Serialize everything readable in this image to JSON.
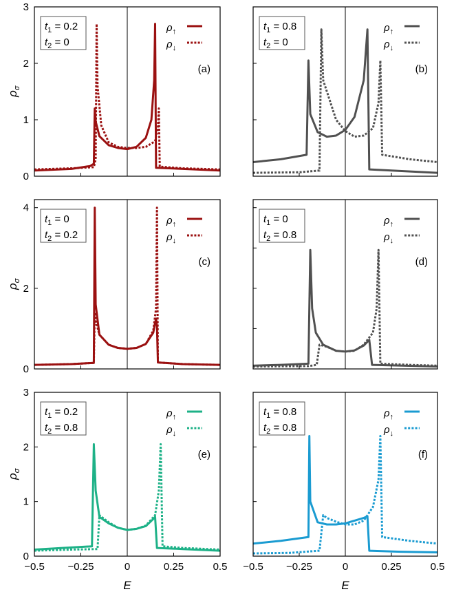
{
  "chart_data": [
    {
      "id": "a",
      "type": "line",
      "panel_label": "(a)",
      "xlim": [
        -0.5,
        0.5
      ],
      "ylim": [
        0,
        3
      ],
      "ylabel": "ρσ",
      "xlabel": "",
      "yticks": [
        0,
        1,
        2,
        3
      ],
      "ytick_labels": [
        "0",
        "1",
        "2",
        "3"
      ],
      "xticks": [
        -0.5,
        -0.25,
        0,
        0.25,
        0.5
      ],
      "xtick_labels": [],
      "params": [
        "t1 = 0.2",
        "t2 = 0"
      ],
      "color": "#9b1111",
      "legend": [
        "ρ↑",
        "ρ↓"
      ],
      "series": [
        {
          "style": "solid",
          "x": [
            -0.5,
            -0.3,
            -0.2,
            -0.18,
            -0.175,
            -0.17,
            -0.15,
            -0.1,
            -0.05,
            0,
            0.05,
            0.1,
            0.13,
            0.145,
            0.15,
            0.155,
            0.3,
            0.5
          ],
          "y": [
            0.1,
            0.13,
            0.18,
            0.22,
            1.2,
            0.97,
            0.71,
            0.55,
            0.5,
            0.48,
            0.52,
            0.68,
            1.0,
            1.7,
            2.7,
            0.15,
            0.13,
            0.1
          ]
        },
        {
          "style": "dotted",
          "x": [
            -0.5,
            -0.3,
            -0.18,
            -0.17,
            -0.165,
            -0.16,
            -0.14,
            -0.1,
            -0.05,
            0,
            0.05,
            0.1,
            0.15,
            0.165,
            0.17,
            0.175,
            0.3,
            0.5
          ],
          "y": [
            0.12,
            0.14,
            0.16,
            0.3,
            2.7,
            1.6,
            0.9,
            0.6,
            0.52,
            0.5,
            0.5,
            0.52,
            0.62,
            0.85,
            1.2,
            0.17,
            0.14,
            0.12
          ]
        }
      ]
    },
    {
      "id": "b",
      "type": "line",
      "panel_label": "(b)",
      "xlim": [
        -0.5,
        0.5
      ],
      "ylim": [
        0,
        3
      ],
      "ylabel": "",
      "xlabel": "",
      "yticks": [
        0,
        1,
        2,
        3
      ],
      "ytick_labels": [],
      "xticks": [
        -0.5,
        -0.25,
        0,
        0.25,
        0.5
      ],
      "xtick_labels": [],
      "params": [
        "t1 = 0.8",
        "t2 = 0"
      ],
      "color": "#505050",
      "legend": [
        "ρ↑",
        "ρ↓"
      ],
      "series": [
        {
          "style": "solid",
          "x": [
            -0.5,
            -0.35,
            -0.21,
            -0.2,
            -0.19,
            -0.15,
            -0.1,
            -0.05,
            0,
            0.05,
            0.1,
            0.12,
            0.13,
            0.5
          ],
          "y": [
            0.25,
            0.3,
            0.38,
            2.05,
            1.1,
            0.78,
            0.7,
            0.72,
            0.82,
            1.05,
            1.7,
            2.6,
            0.12,
            0.06
          ]
        },
        {
          "style": "dotted",
          "x": [
            -0.5,
            -0.25,
            -0.14,
            -0.13,
            -0.12,
            -0.05,
            0,
            0.05,
            0.1,
            0.15,
            0.18,
            0.19,
            0.2,
            0.35,
            0.5
          ],
          "y": [
            0.06,
            0.07,
            0.1,
            2.6,
            1.7,
            1.0,
            0.8,
            0.7,
            0.72,
            0.85,
            1.3,
            2.05,
            0.38,
            0.3,
            0.25
          ]
        }
      ]
    },
    {
      "id": "c",
      "type": "line",
      "panel_label": "(c)",
      "xlim": [
        -0.5,
        0.5
      ],
      "ylim": [
        0,
        4.2
      ],
      "ylabel": "ρσ",
      "xlabel": "",
      "yticks": [
        0,
        2,
        4
      ],
      "ytick_labels": [
        "0",
        "2",
        "4"
      ],
      "xticks": [
        -0.5,
        -0.25,
        0,
        0.25,
        0.5
      ],
      "xtick_labels": [],
      "params": [
        "t1 = 0",
        "t2 = 0.2"
      ],
      "color": "#9b1111",
      "legend": [
        "ρ↑",
        "ρ↓"
      ],
      "series": [
        {
          "style": "solid",
          "x": [
            -0.5,
            -0.3,
            -0.18,
            -0.175,
            -0.17,
            -0.15,
            -0.1,
            -0.05,
            0,
            0.05,
            0.1,
            0.14,
            0.155,
            0.16,
            0.165,
            0.3,
            0.5
          ],
          "y": [
            0.1,
            0.12,
            0.15,
            4.0,
            1.6,
            0.85,
            0.6,
            0.52,
            0.5,
            0.52,
            0.62,
            0.9,
            1.25,
            1.05,
            0.16,
            0.12,
            0.1
          ]
        },
        {
          "style": "dotted",
          "x": [
            -0.5,
            -0.3,
            -0.18,
            -0.175,
            -0.17,
            -0.15,
            -0.1,
            -0.05,
            0,
            0.05,
            0.1,
            0.14,
            0.155,
            0.16,
            0.165,
            0.3,
            0.5
          ],
          "y": [
            0.1,
            0.12,
            0.15,
            1.4,
            1.2,
            0.85,
            0.6,
            0.52,
            0.5,
            0.52,
            0.62,
            0.95,
            1.5,
            4.0,
            0.16,
            0.12,
            0.1
          ]
        }
      ]
    },
    {
      "id": "d",
      "type": "line",
      "panel_label": "(d)",
      "xlim": [
        -0.5,
        0.5
      ],
      "ylim": [
        0,
        4.2
      ],
      "ylabel": "",
      "xlabel": "",
      "yticks": [
        0,
        1,
        2,
        3,
        4
      ],
      "ytick_labels": [],
      "xticks": [
        -0.5,
        -0.25,
        0,
        0.25,
        0.5
      ],
      "xtick_labels": [],
      "params": [
        "t1 = 0",
        "t2 = 0.8"
      ],
      "color": "#505050",
      "legend": [
        "ρ↑",
        "ρ↓"
      ],
      "series": [
        {
          "style": "solid",
          "x": [
            -0.5,
            -0.35,
            -0.2,
            -0.19,
            -0.18,
            -0.16,
            -0.12,
            -0.05,
            0,
            0.05,
            0.1,
            0.13,
            0.145,
            0.5
          ],
          "y": [
            0.08,
            0.1,
            0.13,
            2.95,
            1.5,
            0.9,
            0.6,
            0.45,
            0.43,
            0.46,
            0.58,
            0.72,
            0.1,
            0.06
          ]
        },
        {
          "style": "dotted",
          "x": [
            -0.5,
            -0.2,
            -0.155,
            -0.14,
            -0.1,
            -0.05,
            0,
            0.05,
            0.1,
            0.15,
            0.17,
            0.18,
            0.19,
            0.35,
            0.5
          ],
          "y": [
            0.06,
            0.07,
            0.1,
            0.6,
            0.55,
            0.45,
            0.43,
            0.45,
            0.6,
            0.9,
            1.5,
            2.95,
            0.13,
            0.1,
            0.08
          ]
        }
      ]
    },
    {
      "id": "e",
      "type": "line",
      "panel_label": "(e)",
      "xlim": [
        -0.5,
        0.5
      ],
      "ylim": [
        0,
        3
      ],
      "ylabel": "ρσ",
      "xlabel": "E",
      "yticks": [
        0,
        1,
        2,
        3
      ],
      "ytick_labels": [
        "0",
        "1",
        "2",
        "3"
      ],
      "xticks": [
        -0.5,
        -0.25,
        0,
        0.25,
        0.5
      ],
      "xtick_labels": [
        "−0.5",
        "−0.25",
        "0",
        "0.25",
        "0.5"
      ],
      "params": [
        "t1 = 0.2",
        "t2 = 0.8"
      ],
      "color": "#1db187",
      "legend": [
        "ρ↑",
        "ρ↓"
      ],
      "series": [
        {
          "style": "solid",
          "x": [
            -0.5,
            -0.35,
            -0.19,
            -0.18,
            -0.17,
            -0.15,
            -0.1,
            -0.05,
            0,
            0.05,
            0.1,
            0.14,
            0.15,
            0.16,
            0.3,
            0.5
          ],
          "y": [
            0.12,
            0.15,
            0.18,
            2.05,
            1.2,
            0.72,
            0.6,
            0.52,
            0.48,
            0.5,
            0.55,
            0.68,
            0.72,
            0.15,
            0.13,
            0.1
          ]
        },
        {
          "style": "dotted",
          "x": [
            -0.5,
            -0.3,
            -0.16,
            -0.15,
            -0.1,
            -0.05,
            0,
            0.05,
            0.1,
            0.15,
            0.17,
            0.18,
            0.19,
            0.3,
            0.5
          ],
          "y": [
            0.1,
            0.12,
            0.13,
            0.75,
            0.62,
            0.52,
            0.48,
            0.5,
            0.56,
            0.75,
            1.2,
            2.05,
            0.18,
            0.15,
            0.12
          ]
        }
      ]
    },
    {
      "id": "f",
      "type": "line",
      "panel_label": "(f)",
      "xlim": [
        -0.5,
        0.5
      ],
      "ylim": [
        0,
        3
      ],
      "ylabel": "",
      "xlabel": "E",
      "yticks": [
        0,
        1,
        2,
        3
      ],
      "ytick_labels": [],
      "xticks": [
        -0.5,
        -0.25,
        0,
        0.25,
        0.5
      ],
      "xtick_labels": [
        "−0.5",
        "−0.25",
        "0",
        "0.25",
        "0.5"
      ],
      "params": [
        "t1 = 0.8",
        "t2 = 0.8"
      ],
      "color": "#1a9bd1",
      "legend": [
        "ρ↑",
        "ρ↓"
      ],
      "series": [
        {
          "style": "solid",
          "x": [
            -0.5,
            -0.35,
            -0.2,
            -0.195,
            -0.19,
            -0.15,
            -0.1,
            -0.05,
            0,
            0.05,
            0.1,
            0.12,
            0.13,
            0.3,
            0.5
          ],
          "y": [
            0.23,
            0.28,
            0.35,
            2.2,
            1.0,
            0.62,
            0.58,
            0.58,
            0.6,
            0.65,
            0.7,
            0.73,
            0.1,
            0.08,
            0.07
          ]
        },
        {
          "style": "dotted",
          "x": [
            -0.5,
            -0.3,
            -0.14,
            -0.12,
            -0.1,
            -0.05,
            0,
            0.05,
            0.1,
            0.15,
            0.18,
            0.19,
            0.2,
            0.35,
            0.5
          ],
          "y": [
            0.05,
            0.06,
            0.1,
            0.75,
            0.7,
            0.63,
            0.58,
            0.58,
            0.65,
            0.9,
            1.4,
            2.2,
            0.35,
            0.28,
            0.23
          ]
        }
      ]
    }
  ]
}
